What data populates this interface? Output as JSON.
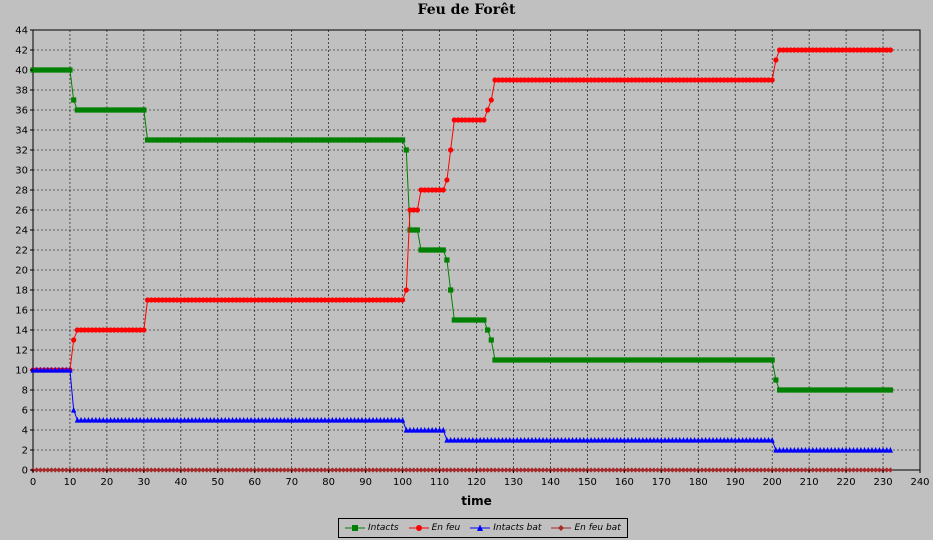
{
  "chart_data": {
    "type": "line",
    "title": "Feu de Forêt",
    "xlabel": "time",
    "ylabel": "",
    "xlim": [
      0,
      240
    ],
    "ylim": [
      0,
      44
    ],
    "xticks": [
      0,
      10,
      20,
      30,
      40,
      50,
      60,
      70,
      80,
      90,
      100,
      110,
      120,
      130,
      140,
      150,
      160,
      170,
      180,
      190,
      200,
      210,
      220,
      230,
      240
    ],
    "yticks": [
      0,
      2,
      4,
      6,
      8,
      10,
      12,
      14,
      16,
      18,
      20,
      22,
      24,
      26,
      28,
      30,
      32,
      34,
      36,
      38,
      40,
      42,
      44
    ],
    "grid": true,
    "legend_position": "bottom",
    "series": [
      {
        "name": "Intacts",
        "color": "#008000",
        "marker": "square",
        "points": [
          [
            0,
            40
          ],
          [
            10,
            40
          ],
          [
            11,
            37
          ],
          [
            12,
            36
          ],
          [
            30,
            36
          ],
          [
            31,
            33
          ],
          [
            100,
            33
          ],
          [
            101,
            32
          ],
          [
            102,
            24
          ],
          [
            104,
            24
          ],
          [
            105,
            22
          ],
          [
            111,
            22
          ],
          [
            112,
            21
          ],
          [
            113,
            18
          ],
          [
            114,
            15
          ],
          [
            122,
            15
          ],
          [
            123,
            14
          ],
          [
            124,
            13
          ],
          [
            125,
            11
          ],
          [
            200,
            11
          ],
          [
            201,
            9
          ],
          [
            202,
            8
          ],
          [
            232,
            8
          ]
        ]
      },
      {
        "name": "En feu",
        "color": "#ff0000",
        "marker": "circle",
        "points": [
          [
            0,
            10
          ],
          [
            10,
            10
          ],
          [
            11,
            13
          ],
          [
            12,
            14
          ],
          [
            30,
            14
          ],
          [
            31,
            17
          ],
          [
            100,
            17
          ],
          [
            101,
            18
          ],
          [
            102,
            26
          ],
          [
            104,
            26
          ],
          [
            105,
            28
          ],
          [
            111,
            28
          ],
          [
            112,
            29
          ],
          [
            113,
            32
          ],
          [
            114,
            35
          ],
          [
            122,
            35
          ],
          [
            123,
            36
          ],
          [
            124,
            37
          ],
          [
            125,
            39
          ],
          [
            200,
            39
          ],
          [
            201,
            41
          ],
          [
            202,
            42
          ],
          [
            232,
            42
          ]
        ]
      },
      {
        "name": "Intacts bat",
        "color": "#0000ff",
        "marker": "triangle",
        "points": [
          [
            0,
            10
          ],
          [
            10,
            10
          ],
          [
            11,
            6
          ],
          [
            12,
            5
          ],
          [
            100,
            5
          ],
          [
            101,
            4
          ],
          [
            111,
            4
          ],
          [
            112,
            3
          ],
          [
            200,
            3
          ],
          [
            201,
            2
          ],
          [
            232,
            2
          ]
        ]
      },
      {
        "name": "En feu bat",
        "color": "#a52a2a",
        "marker": "diamond",
        "points": [
          [
            0,
            0
          ],
          [
            232,
            0
          ]
        ]
      }
    ]
  }
}
